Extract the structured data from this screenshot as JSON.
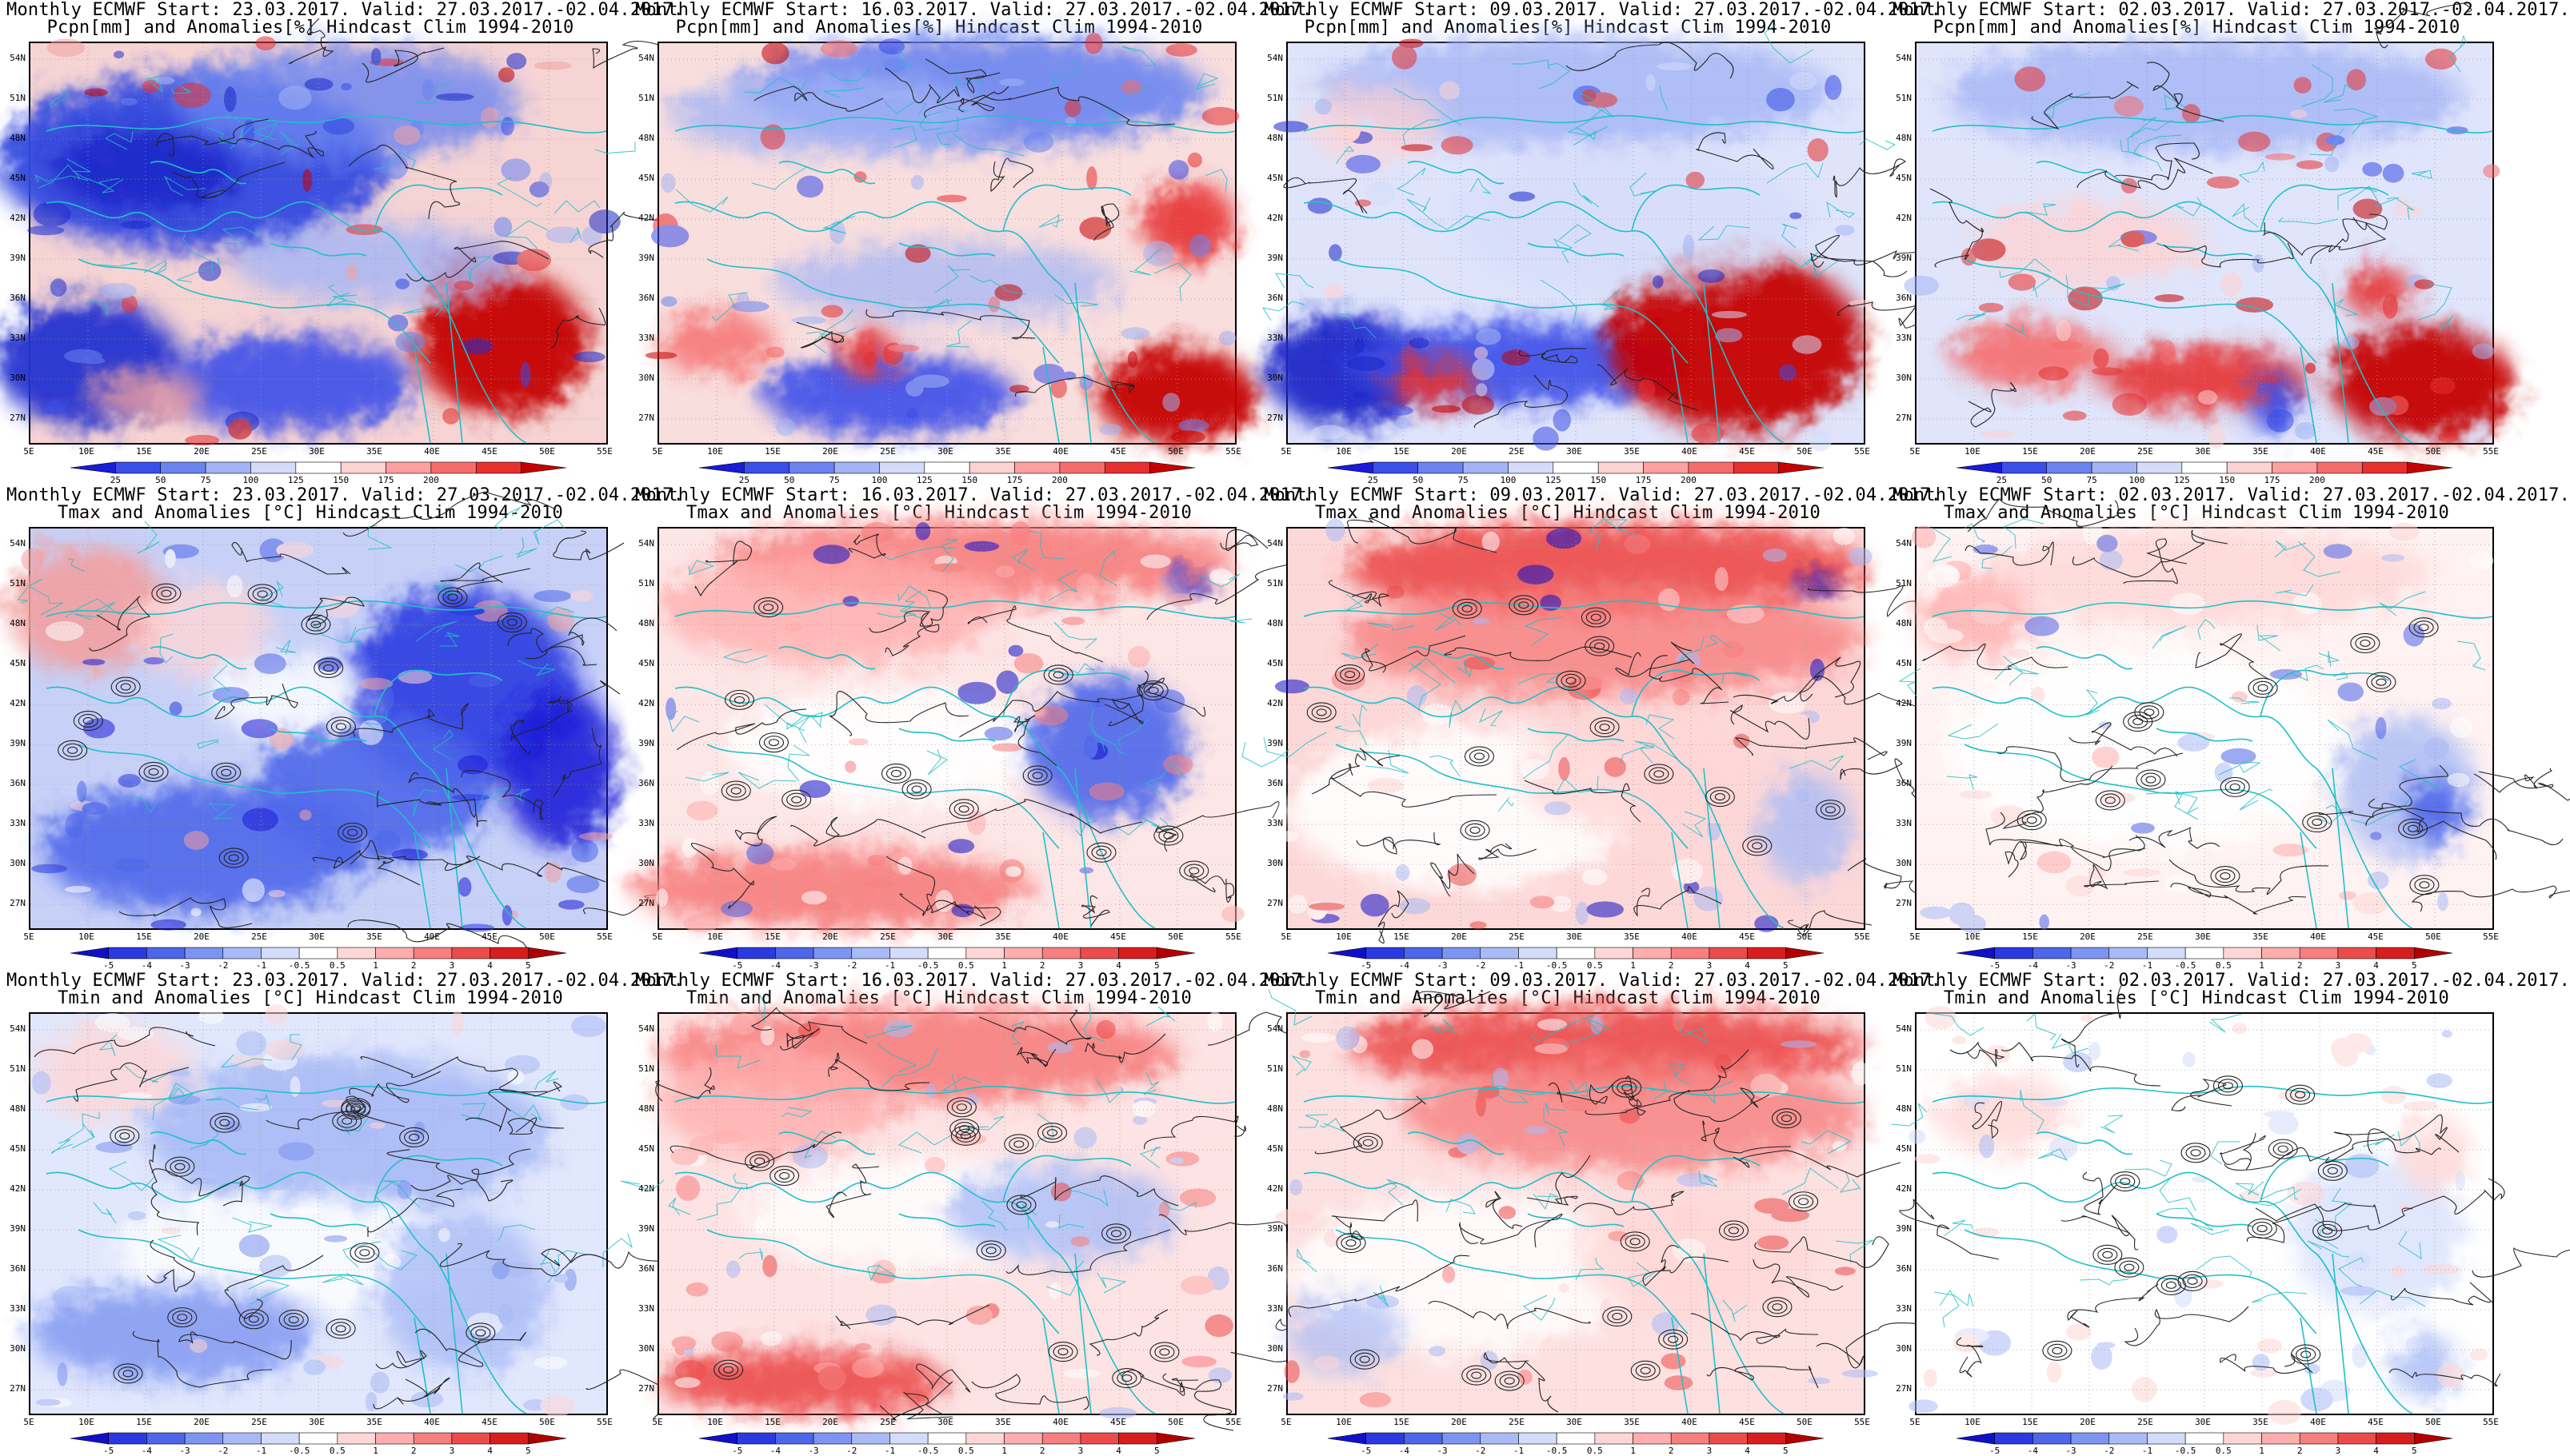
{
  "panels": [
    {
      "row": 0,
      "col": 0,
      "line1": "Monthly ECMWF Start: 23.03.2017. Valid: 27.03.2017.-02.04.2017.",
      "line2": "Pcpn[mm] and Anomalies[%] Hindcast Clim 1994-2010"
    },
    {
      "row": 0,
      "col": 1,
      "line1": "Monthly ECMWF Start: 16.03.2017. Valid: 27.03.2017.-02.04.2017.",
      "line2": "Pcpn[mm] and Anomalies[%] Hindcast Clim 1994-2010"
    },
    {
      "row": 0,
      "col": 2,
      "line1": "Monthly ECMWF Start: 09.03.2017. Valid: 27.03.2017.-02.04.2017.",
      "line2": "Pcpn[mm] and Anomalies[%] Hindcast Clim 1994-2010"
    },
    {
      "row": 0,
      "col": 3,
      "line1": "Monthly ECMWF Start: 02.03.2017. Valid: 27.03.2017.-02.04.2017.",
      "line2": "Pcpn[mm] and Anomalies[%] Hindcast Clim 1994-2010"
    },
    {
      "row": 1,
      "col": 0,
      "line1": "Monthly ECMWF Start: 23.03.2017. Valid: 27.03.2017.-02.04.2017.",
      "line2": "Tmax and Anomalies [°C] Hindcast Clim 1994-2010"
    },
    {
      "row": 1,
      "col": 1,
      "line1": "Monthly ECMWF Start: 16.03.2017. Valid: 27.03.2017.-02.04.2017.",
      "line2": "Tmax and Anomalies [°C] Hindcast Clim 1994-2010"
    },
    {
      "row": 1,
      "col": 2,
      "line1": "Monthly ECMWF Start: 09.03.2017. Valid: 27.03.2017.-02.04.2017.",
      "line2": "Tmax and Anomalies [°C] Hindcast Clim 1994-2010"
    },
    {
      "row": 1,
      "col": 3,
      "line1": "Monthly ECMWF Start: 02.03.2017. Valid: 27.03.2017.-02.04.2017.",
      "line2": "Tmax and Anomalies [°C] Hindcast Clim 1994-2010"
    },
    {
      "row": 2,
      "col": 0,
      "line1": "Monthly ECMWF Start: 23.03.2017. Valid: 27.03.2017.-02.04.2017.",
      "line2": "Tmin and Anomalies [°C] Hindcast Clim 1994-2010"
    },
    {
      "row": 2,
      "col": 1,
      "line1": "Monthly ECMWF Start: 16.03.2017. Valid: 27.03.2017.-02.04.2017.",
      "line2": "Tmin and Anomalies [°C] Hindcast Clim 1994-2010"
    },
    {
      "row": 2,
      "col": 2,
      "line1": "Monthly ECMWF Start: 09.03.2017. Valid: 27.03.2017.-02.04.2017.",
      "line2": "Tmin and Anomalies [°C] Hindcast Clim 1994-2010"
    },
    {
      "row": 2,
      "col": 3,
      "line1": "Monthly ECMWF Start: 02.03.2017. Valid: 27.03.2017.-02.04.2017.",
      "line2": "Tmin and Anomalies [°C] Hindcast Clim 1994-2010"
    }
  ],
  "lat_labels": [
    "54N",
    "51N",
    "48N",
    "45N",
    "42N",
    "39N",
    "36N",
    "33N",
    "30N",
    "27N"
  ],
  "lon_labels": [
    "5E",
    "10E",
    "15E",
    "20E",
    "25E",
    "30E",
    "35E",
    "40E",
    "45E",
    "50E",
    "55E"
  ],
  "colorbars": {
    "pcpn": {
      "labels": [
        "25",
        "50",
        "75",
        "100",
        "125",
        "150",
        "175",
        "200"
      ],
      "colors": [
        "#1a1ad8",
        "#3a4ee8",
        "#6a84f0",
        "#a3b4f5",
        "#d4dcfa",
        "#ffffff",
        "#ffd2d2",
        "#ffa0a0",
        "#f56c6c",
        "#e63030",
        "#c40000"
      ]
    },
    "temp": {
      "labels": [
        "-5",
        "-4",
        "-3",
        "-2",
        "-1",
        "-0.5",
        "0.5",
        "1",
        "2",
        "3",
        "4",
        "5"
      ],
      "colors": [
        "#1010c8",
        "#2a3ae0",
        "#4d66ea",
        "#7d94f2",
        "#a9bbf6",
        "#d3dcfb",
        "#ffffff",
        "#ffd6d6",
        "#ffadad",
        "#f77f7f",
        "#ec4c4c",
        "#d81d1d",
        "#b00000"
      ]
    }
  },
  "scenario": {
    "pcpn": [
      {
        "base": "#f6d4d4",
        "blobs": [
          [
            "#3048e0",
            0.28,
            0.3,
            0.34,
            0.22,
            0.95
          ],
          [
            "#1a28c8",
            0.2,
            0.32,
            0.16,
            0.1,
            0.9
          ],
          [
            "#6a84f0",
            0.55,
            0.15,
            0.3,
            0.14,
            0.8
          ],
          [
            "#2030d0",
            0.1,
            0.8,
            0.16,
            0.16,
            0.95
          ],
          [
            "#3a4ee8",
            0.45,
            0.85,
            0.22,
            0.12,
            0.9
          ],
          [
            "#c40000",
            0.82,
            0.75,
            0.15,
            0.18,
            0.95
          ],
          [
            "#e63030",
            0.76,
            0.58,
            0.06,
            0.06,
            0.9
          ],
          [
            "#f0a0a0",
            0.2,
            0.88,
            0.1,
            0.06,
            0.8
          ],
          [
            "#a3b4f5",
            0.6,
            0.55,
            0.25,
            0.1,
            0.8
          ]
        ]
      },
      {
        "base": "#f9dede",
        "blobs": [
          [
            "#6a84f0",
            0.55,
            0.12,
            0.4,
            0.14,
            0.9
          ],
          [
            "#a3b4f5",
            0.3,
            0.18,
            0.28,
            0.1,
            0.8
          ],
          [
            "#3a4ee8",
            0.4,
            0.88,
            0.22,
            0.1,
            0.9
          ],
          [
            "#c40000",
            0.9,
            0.88,
            0.14,
            0.12,
            0.95
          ],
          [
            "#e63030",
            0.92,
            0.45,
            0.08,
            0.1,
            0.9
          ],
          [
            "#f56c6c",
            0.1,
            0.75,
            0.1,
            0.08,
            0.8
          ],
          [
            "#e63030",
            0.36,
            0.77,
            0.05,
            0.06,
            0.9
          ],
          [
            "#a3b4f5",
            0.5,
            0.6,
            0.3,
            0.1,
            0.7
          ]
        ]
      },
      {
        "base": "#dfe4fb",
        "blobs": [
          [
            "#a3b4f5",
            0.5,
            0.12,
            0.45,
            0.14,
            0.8
          ],
          [
            "#1a28c8",
            0.1,
            0.82,
            0.14,
            0.14,
            0.95
          ],
          [
            "#3a4ee8",
            0.4,
            0.8,
            0.3,
            0.1,
            0.9
          ],
          [
            "#c40000",
            0.78,
            0.75,
            0.22,
            0.22,
            0.95
          ],
          [
            "#e63030",
            0.25,
            0.85,
            0.08,
            0.06,
            0.9
          ],
          [
            "#d4dcfa",
            0.6,
            0.45,
            0.3,
            0.18,
            0.7
          ],
          [
            "#ffd2d2",
            0.15,
            0.2,
            0.12,
            0.1,
            0.7
          ]
        ]
      },
      {
        "base": "#e0e5fb",
        "blobs": [
          [
            "#a3b4f5",
            0.5,
            0.13,
            0.45,
            0.14,
            0.8
          ],
          [
            "#ffd2d2",
            0.3,
            0.5,
            0.2,
            0.1,
            0.8
          ],
          [
            "#f56c6c",
            0.2,
            0.78,
            0.14,
            0.08,
            0.9
          ],
          [
            "#e63030",
            0.5,
            0.84,
            0.18,
            0.08,
            0.9
          ],
          [
            "#c40000",
            0.88,
            0.85,
            0.16,
            0.14,
            0.95
          ],
          [
            "#e63030",
            0.8,
            0.62,
            0.06,
            0.06,
            0.9
          ],
          [
            "#3a4ee8",
            0.62,
            0.9,
            0.04,
            0.08,
            0.9
          ]
        ]
      }
    ],
    "tmax": [
      {
        "base": "#c7d1f8",
        "blobs": [
          [
            "#f2a0a0",
            0.1,
            0.2,
            0.14,
            0.16,
            0.9
          ],
          [
            "#ffd6d6",
            0.3,
            0.25,
            0.12,
            0.12,
            0.8
          ],
          [
            "#2a3ae0",
            0.75,
            0.4,
            0.2,
            0.25,
            0.9
          ],
          [
            "#4d66ea",
            0.3,
            0.8,
            0.28,
            0.16,
            0.9
          ],
          [
            "#4d66ea",
            0.6,
            0.65,
            0.2,
            0.18,
            0.9
          ],
          [
            "#ffffff",
            0.45,
            0.42,
            0.14,
            0.1,
            0.8
          ],
          [
            "#1a1ad8",
            0.92,
            0.6,
            0.1,
            0.2,
            0.9
          ]
        ]
      },
      {
        "base": "#fde6e6",
        "blobs": [
          [
            "#f77f7f",
            0.55,
            0.08,
            0.45,
            0.1,
            0.9
          ],
          [
            "#ffadad",
            0.3,
            0.2,
            0.3,
            0.14,
            0.8
          ],
          [
            "#ffffff",
            0.4,
            0.55,
            0.28,
            0.14,
            0.9
          ],
          [
            "#4d66ea",
            0.78,
            0.55,
            0.14,
            0.18,
            0.9
          ],
          [
            "#f77f7f",
            0.3,
            0.9,
            0.35,
            0.1,
            0.9
          ],
          [
            "#1010c8",
            0.92,
            0.14,
            0.03,
            0.03,
            0.9
          ]
        ]
      },
      {
        "base": "#fdd8d8",
        "blobs": [
          [
            "#ec4c4c",
            0.55,
            0.1,
            0.45,
            0.12,
            0.9
          ],
          [
            "#f77f7f",
            0.55,
            0.28,
            0.45,
            0.14,
            0.8
          ],
          [
            "#ffffff",
            0.3,
            0.7,
            0.3,
            0.2,
            0.9
          ],
          [
            "#ffd6d6",
            0.6,
            0.62,
            0.2,
            0.14,
            0.8
          ],
          [
            "#a9bbf6",
            0.9,
            0.75,
            0.08,
            0.14,
            0.8
          ],
          [
            "#1010c8",
            0.92,
            0.14,
            0.03,
            0.03,
            0.9
          ]
        ]
      },
      {
        "base": "#fff2f2",
        "blobs": [
          [
            "#ffd6d6",
            0.5,
            0.12,
            0.4,
            0.12,
            0.8
          ],
          [
            "#ffffff",
            0.4,
            0.55,
            0.35,
            0.25,
            0.9
          ],
          [
            "#a9bbf6",
            0.85,
            0.65,
            0.12,
            0.18,
            0.8
          ],
          [
            "#4d66ea",
            0.9,
            0.7,
            0.05,
            0.08,
            0.9
          ],
          [
            "#ffadad",
            0.1,
            0.22,
            0.1,
            0.1,
            0.8
          ]
        ]
      }
    ],
    "tmin": [
      {
        "base": "#e1e7fc",
        "blobs": [
          [
            "#ffd6d6",
            0.15,
            0.15,
            0.14,
            0.12,
            0.8
          ],
          [
            "#a9bbf6",
            0.55,
            0.3,
            0.35,
            0.2,
            0.9
          ],
          [
            "#ffffff",
            0.45,
            0.6,
            0.3,
            0.15,
            0.8
          ],
          [
            "#7d94f2",
            0.25,
            0.8,
            0.25,
            0.12,
            0.8
          ],
          [
            "#a9bbf6",
            0.75,
            0.7,
            0.15,
            0.2,
            0.8
          ]
        ]
      },
      {
        "base": "#fde3e3",
        "blobs": [
          [
            "#f77f7f",
            0.45,
            0.1,
            0.45,
            0.12,
            0.9
          ],
          [
            "#ffadad",
            0.2,
            0.22,
            0.2,
            0.14,
            0.8
          ],
          [
            "#ffffff",
            0.45,
            0.5,
            0.3,
            0.14,
            0.8
          ],
          [
            "#a9bbf6",
            0.7,
            0.5,
            0.2,
            0.12,
            0.8
          ],
          [
            "#ec4c4c",
            0.25,
            0.92,
            0.25,
            0.08,
            0.9
          ]
        ]
      },
      {
        "base": "#fde0e0",
        "blobs": [
          [
            "#ec4c4c",
            0.55,
            0.08,
            0.45,
            0.1,
            0.9
          ],
          [
            "#f77f7f",
            0.6,
            0.25,
            0.4,
            0.14,
            0.8
          ],
          [
            "#ffffff",
            0.3,
            0.65,
            0.3,
            0.2,
            0.8
          ],
          [
            "#ffd6d6",
            0.7,
            0.6,
            0.2,
            0.16,
            0.8
          ],
          [
            "#a9bbf6",
            0.1,
            0.8,
            0.1,
            0.1,
            0.7
          ]
        ]
      },
      {
        "base": "#ffffff",
        "blobs": [
          [
            "#ffd6d6",
            0.15,
            0.25,
            0.12,
            0.1,
            0.8
          ],
          [
            "#d3dcfb",
            0.8,
            0.55,
            0.15,
            0.2,
            0.7
          ],
          [
            "#a9bbf6",
            0.88,
            0.88,
            0.06,
            0.08,
            0.8
          ],
          [
            "#ffd6d6",
            0.9,
            0.35,
            0.06,
            0.1,
            0.8
          ]
        ]
      }
    ]
  }
}
